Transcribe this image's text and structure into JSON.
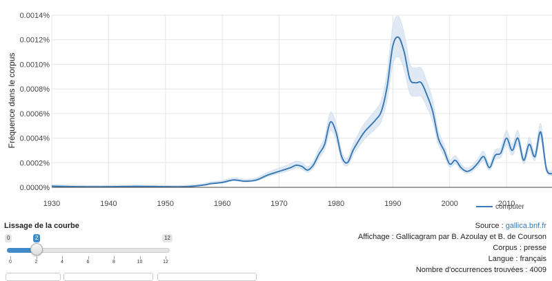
{
  "chart_data": {
    "type": "line",
    "ylabel": "Fréquence dans le corpus",
    "xlim": [
      1930,
      2018
    ],
    "ylim": [
      0,
      0.0014
    ],
    "y_ticks": [
      "0.0000%",
      "0.0002%",
      "0.0004%",
      "0.0006%",
      "0.0008%",
      "0.0010%",
      "0.0012%",
      "0.0014%"
    ],
    "x_ticks": [
      "1930",
      "1940",
      "1950",
      "1960",
      "1970",
      "1980",
      "1990",
      "2000",
      "2010"
    ],
    "grid": true,
    "legend_position": "bottom-right",
    "series_color": "#3b7ab5",
    "band_color": "#dbe7f3",
    "series": [
      {
        "name": "computer",
        "x": [
          1930,
          1935,
          1940,
          1945,
          1950,
          1953,
          1955,
          1957,
          1958,
          1960,
          1962,
          1964,
          1966,
          1968,
          1970,
          1972,
          1973,
          1974,
          1975,
          1976,
          1977,
          1978,
          1979,
          1980,
          1981,
          1982,
          1983,
          1984,
          1985,
          1986,
          1987,
          1988,
          1989,
          1990,
          1991,
          1992,
          1993,
          1994,
          1995,
          1996,
          1997,
          1998,
          1999,
          2000,
          2001,
          2002,
          2003,
          2004,
          2005,
          2006,
          2007,
          2008,
          2009,
          2010,
          2011,
          2012,
          2013,
          2014,
          2015,
          2016,
          2017,
          2018
        ],
        "y": [
          1e-05,
          5e-06,
          5e-06,
          8e-06,
          5e-06,
          5e-06,
          1e-05,
          2e-05,
          3e-05,
          4e-05,
          6e-05,
          5e-05,
          6e-05,
          0.0001,
          0.00013,
          0.00016,
          0.00018,
          0.00017,
          0.00014,
          0.00018,
          0.00027,
          0.00035,
          0.00053,
          0.00045,
          0.00025,
          0.0002,
          0.0003,
          0.00038,
          0.00045,
          0.0005,
          0.00055,
          0.00062,
          0.00082,
          0.00115,
          0.00122,
          0.0011,
          0.00088,
          0.00085,
          0.00085,
          0.00075,
          0.00062,
          0.0004,
          0.0003,
          0.00019,
          0.00022,
          0.00016,
          0.00013,
          0.00015,
          0.0002,
          0.00025,
          0.00016,
          0.00026,
          0.00028,
          0.0004,
          0.0003,
          0.0004,
          0.00022,
          0.00035,
          0.00025,
          0.00045,
          0.00015,
          0.00011
        ]
      }
    ]
  },
  "slider": {
    "title": "Lissage de la courbe",
    "min": 0,
    "max": 12,
    "value": 2,
    "ticks": [
      0,
      2,
      4,
      6,
      8,
      10,
      12
    ]
  },
  "info": {
    "source_label": "Source : ",
    "source_link": "gallica.bnf.fr",
    "display": "Affichage : Gallicagram par B. Azoulay et B. de Courson",
    "corpus": "Corpus : presse",
    "language": "Langue : français",
    "occurrences": "Nombre d'occurrences trouvées : 4009"
  }
}
